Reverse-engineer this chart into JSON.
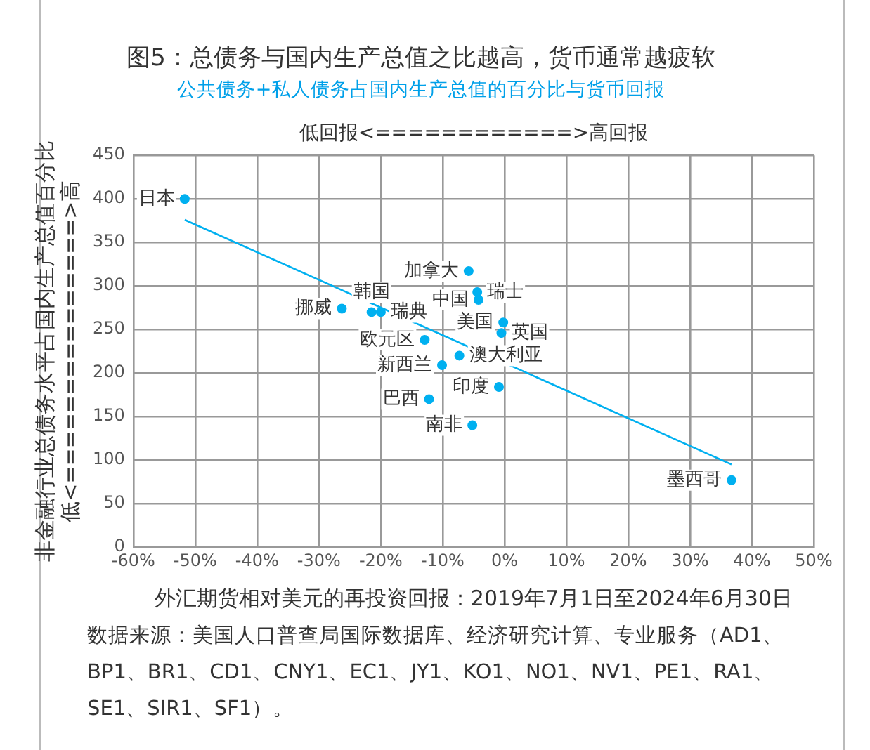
{
  "chart_data": {
    "type": "scatter",
    "title": "图5：总债务与国内生产总值之比越高，货币通常越疲软",
    "subtitle": "公共债务+私人债务占国内生产总值的百分比与货币回报",
    "xlabel": "外汇期货相对美元的再投资回报：2019年7月1日至2024年6月30日",
    "ylabel": "非金融行业总债务水平占国内生产总值百分比",
    "xlim": [
      -60,
      50
    ],
    "xticks": [
      {
        "value": -60,
        "label": "-60%"
      },
      {
        "value": -50,
        "label": "-50%"
      },
      {
        "value": -40,
        "label": "-40%"
      },
      {
        "value": -30,
        "label": "-30%"
      },
      {
        "value": -20,
        "label": "-20%"
      },
      {
        "value": -10,
        "label": "-10%"
      },
      {
        "value": 0,
        "label": "0%"
      },
      {
        "value": 10,
        "label": "10%"
      },
      {
        "value": 20,
        "label": "20%"
      },
      {
        "value": 30,
        "label": "30%"
      },
      {
        "value": 40,
        "label": "40%"
      },
      {
        "value": 50,
        "label": "50%"
      }
    ],
    "ylim": [
      0,
      450
    ],
    "yticks": [
      0,
      50,
      100,
      150,
      200,
      250,
      300,
      350,
      400,
      450
    ],
    "grid": true,
    "legend": false,
    "marker": "circle",
    "series": [
      {
        "color": "#00b0f0",
        "x": [
          -51.7,
          -26.3,
          -21.5,
          -20,
          -12.9,
          -10.1,
          -12.2,
          -5.2,
          -5.8,
          -4.4,
          -4.2,
          -0.2,
          -0.5,
          -7.3,
          -0.9,
          36.7
        ],
        "values": [
          400,
          274,
          270,
          270,
          238,
          209,
          170,
          140,
          317,
          293,
          284,
          258,
          246,
          220,
          184,
          77
        ]
      },
      {
        "type": "line",
        "color": "#00b0f0",
        "marker": "none",
        "x": [
          -51.7,
          36.7
        ],
        "values": [
          376,
          95
        ]
      }
    ],
    "annotations": [
      "低回报<============>高回报",
      "低<===============>高",
      "数据来源：美国人口普查局国际数据库、经济研究计算、专业服务（AD1、BP1、BR1、CD1、CNY1、EC1、JY1、KO1、NO1、NV1、PE1、RA1、SE1、SIR1、SF1）。",
      {
        "text": "日本",
        "x": -51.7,
        "y": 400
      },
      {
        "text": "挪威",
        "x": -26.3,
        "y": 274
      },
      {
        "text": "韩国",
        "x": -21.5,
        "y": 270
      },
      {
        "text": "瑞典",
        "x": -20,
        "y": 270
      },
      {
        "text": "欧元区",
        "x": -12.9,
        "y": 238
      },
      {
        "text": "新西兰",
        "x": -10.1,
        "y": 209
      },
      {
        "text": "巴西",
        "x": -12.2,
        "y": 170
      },
      {
        "text": "南非",
        "x": -5.2,
        "y": 140
      },
      {
        "text": "加拿大",
        "x": -5.8,
        "y": 317
      },
      {
        "text": "瑞士",
        "x": -4.4,
        "y": 293
      },
      {
        "text": "中国",
        "x": -4.2,
        "y": 284
      },
      {
        "text": "美国",
        "x": -0.2,
        "y": 258
      },
      {
        "text": "英国",
        "x": -0.5,
        "y": 246
      },
      {
        "text": "澳大利亚",
        "x": -7.3,
        "y": 220
      },
      {
        "text": "印度",
        "x": -0.9,
        "y": 184
      },
      {
        "text": "墨西哥",
        "x": 36.7,
        "y": 77
      }
    ]
  }
}
